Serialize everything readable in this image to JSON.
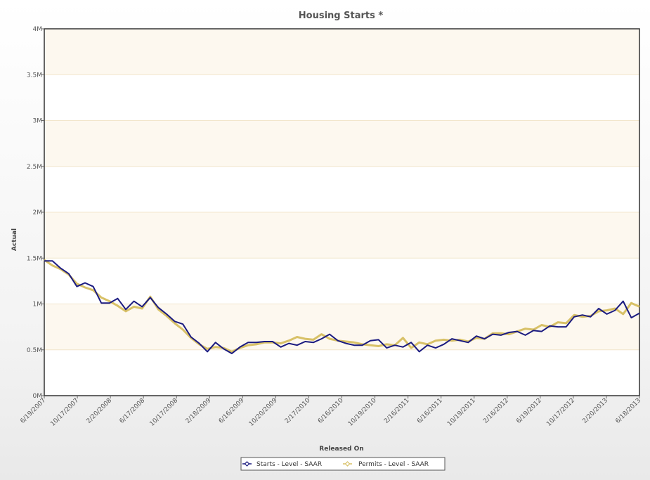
{
  "chart_data": {
    "type": "line",
    "title": "Housing Starts *",
    "xlabel": "Released On",
    "ylabel": "Actual",
    "ylim": [
      0,
      4
    ],
    "y_unit": "M",
    "y_ticks": [
      {
        "value": 0,
        "label": "0M"
      },
      {
        "value": 0.5,
        "label": "0.5M"
      },
      {
        "value": 1,
        "label": "1M"
      },
      {
        "value": 1.5,
        "label": "1.5M"
      },
      {
        "value": 2,
        "label": "2M"
      },
      {
        "value": 2.5,
        "label": "2.5M"
      },
      {
        "value": 3,
        "label": "3M"
      },
      {
        "value": 3.5,
        "label": "3.5M"
      },
      {
        "value": 4,
        "label": "4M"
      }
    ],
    "x_ticks": [
      "6/19/2007",
      "10/17/2007",
      "2/20/2008",
      "6/17/2008",
      "10/17/2008",
      "2/18/2009",
      "6/16/2009",
      "10/20/2009",
      "2/17/2010",
      "6/16/2010",
      "10/19/2010",
      "2/16/2011",
      "6/16/2011",
      "10/19/2011",
      "2/16/2012",
      "6/19/2012",
      "10/17/2012",
      "2/20/2013",
      "6/18/2013"
    ],
    "grid": "alternating horizontal bands",
    "legend_position": "bottom-center",
    "colors": {
      "band": "#fdf8ef",
      "band_line": "#f2e6cc",
      "frame": "#333333"
    },
    "series": [
      {
        "name": "Starts - Level - SAAR",
        "color": "#1a1a80",
        "marker": "diamond",
        "values": [
          1.47,
          1.47,
          1.39,
          1.33,
          1.19,
          1.23,
          1.19,
          1.01,
          1.01,
          1.06,
          0.94,
          1.03,
          0.97,
          1.07,
          0.96,
          0.89,
          0.81,
          0.78,
          0.64,
          0.57,
          0.48,
          0.58,
          0.51,
          0.46,
          0.53,
          0.58,
          0.58,
          0.59,
          0.59,
          0.53,
          0.57,
          0.55,
          0.59,
          0.58,
          0.62,
          0.67,
          0.6,
          0.57,
          0.55,
          0.55,
          0.6,
          0.61,
          0.52,
          0.55,
          0.53,
          0.58,
          0.48,
          0.55,
          0.52,
          0.56,
          0.62,
          0.6,
          0.58,
          0.65,
          0.62,
          0.67,
          0.66,
          0.69,
          0.7,
          0.66,
          0.71,
          0.7,
          0.76,
          0.75,
          0.75,
          0.86,
          0.88,
          0.86,
          0.95,
          0.89,
          0.93,
          1.03,
          0.85,
          0.9
        ]
      },
      {
        "name": "Permits - Level - SAAR",
        "color": "#d8c167",
        "marker": "diamond",
        "values": [
          1.48,
          1.42,
          1.38,
          1.32,
          1.22,
          1.18,
          1.15,
          1.07,
          1.03,
          0.98,
          0.92,
          0.97,
          0.95,
          1.08,
          0.94,
          0.87,
          0.79,
          0.72,
          0.63,
          0.56,
          0.51,
          0.53,
          0.52,
          0.48,
          0.52,
          0.55,
          0.56,
          0.58,
          0.58,
          0.57,
          0.6,
          0.64,
          0.62,
          0.61,
          0.67,
          0.62,
          0.6,
          0.59,
          0.58,
          0.56,
          0.55,
          0.54,
          0.56,
          0.55,
          0.63,
          0.52,
          0.58,
          0.56,
          0.6,
          0.61,
          0.6,
          0.61,
          0.59,
          0.63,
          0.62,
          0.68,
          0.68,
          0.67,
          0.7,
          0.73,
          0.72,
          0.77,
          0.75,
          0.8,
          0.79,
          0.88,
          0.86,
          0.87,
          0.92,
          0.93,
          0.95,
          0.89,
          1.01,
          0.97
        ]
      }
    ]
  }
}
